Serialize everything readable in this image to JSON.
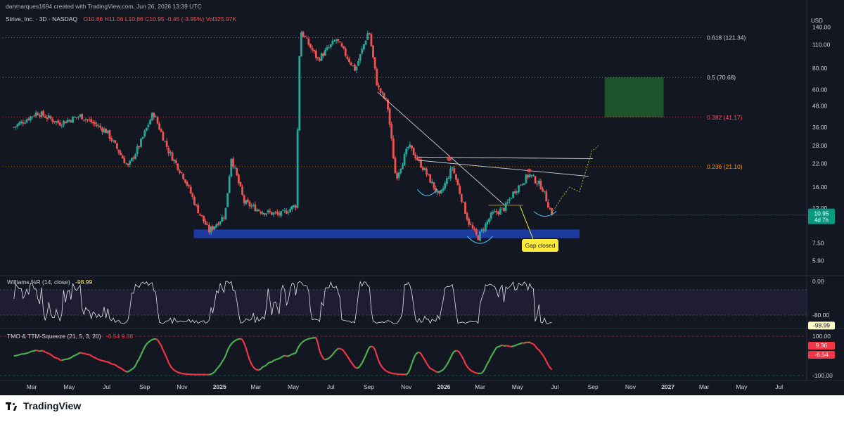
{
  "header": {
    "creator": "danmarques1694 created with TradingView.com, Jun 26, 2026 13:39 UTC",
    "symbol": "Strive, Inc. · 3D · NASDAQ",
    "ohlc": "O10.86 H11.06 L10.86 C10.95 -0.45 (-3.95%) Vol325.97K"
  },
  "currency": "USD",
  "price_badge": {
    "price": "10.95",
    "countdown": "4d 7h"
  },
  "fib_levels": [
    {
      "label": "0.618 (121.34)",
      "value": 121.34,
      "color": "#d1d4dc"
    },
    {
      "label": "0.5 (70.68)",
      "value": 70.68,
      "color": "#d1d4dc"
    },
    {
      "label": "0.382 (41.17)",
      "value": 41.17,
      "color": "#f7525f"
    },
    {
      "label": "0.236 (21.10)",
      "value": 21.1,
      "color": "#ff9800"
    }
  ],
  "annotation": {
    "text": "Gap closed"
  },
  "williams": {
    "title": "Williams %R (14, close)",
    "value": "-98.99",
    "axis": [
      "0.00",
      "-80.00",
      "-98.99"
    ]
  },
  "tmo": {
    "title": "TMO & TTM-Squeeze (21, 5, 3, 20)",
    "value": "-6.54 9.36",
    "axis": [
      "100.00",
      "9.36",
      "-6.54",
      "-100.00"
    ]
  },
  "footer": {
    "brand": "TradingView"
  },
  "colors": {
    "up": "#26a69a",
    "down": "#ef5350",
    "support_zone": "#1c3aa0",
    "target_zone": "#1e5a2b",
    "osc_up": "#4caf50",
    "osc_down": "#f23645",
    "badge": "#089981",
    "callout": "#ffeb3b"
  },
  "chart_data": {
    "type": "candlestick",
    "scale": "log",
    "y_ticks": [
      140,
      110,
      80,
      60,
      48,
      36,
      28,
      22,
      16,
      12,
      7.5,
      5.9
    ],
    "x_ticks": [
      "Mar",
      "May",
      "Jul",
      "Sep",
      "Nov",
      "2025",
      "Mar",
      "May",
      "Jul",
      "Sep",
      "Nov",
      "2026",
      "Mar",
      "May",
      "Jul",
      "Sep",
      "Nov",
      "2027",
      "Mar",
      "May",
      "Jul"
    ],
    "last_close": 10.95,
    "price_path_anchors": [
      {
        "date": "2024-02-01",
        "close": 36
      },
      {
        "date": "2024-03-10",
        "close": 44
      },
      {
        "date": "2024-04-15",
        "close": 38
      },
      {
        "date": "2024-05-20",
        "close": 42
      },
      {
        "date": "2024-07-01",
        "close": 34
      },
      {
        "date": "2024-08-05",
        "close": 21
      },
      {
        "date": "2024-08-25",
        "close": 29
      },
      {
        "date": "2024-09-15",
        "close": 44
      },
      {
        "date": "2024-10-10",
        "close": 26
      },
      {
        "date": "2024-11-05",
        "close": 18
      },
      {
        "date": "2024-11-25",
        "close": 12
      },
      {
        "date": "2024-12-15",
        "close": 8.8
      },
      {
        "date": "2025-01-10",
        "close": 11
      },
      {
        "date": "2025-01-20",
        "close": 24
      },
      {
        "date": "2025-02-10",
        "close": 13
      },
      {
        "date": "2025-03-10",
        "close": 11.5
      },
      {
        "date": "2025-04-10",
        "close": 11
      },
      {
        "date": "2025-05-05",
        "close": 12.5
      },
      {
        "date": "2025-05-12",
        "close": 135
      },
      {
        "date": "2025-06-10",
        "close": 90
      },
      {
        "date": "2025-07-10",
        "close": 118
      },
      {
        "date": "2025-08-10",
        "close": 78
      },
      {
        "date": "2025-09-01",
        "close": 135
      },
      {
        "date": "2025-09-15",
        "close": 62
      },
      {
        "date": "2025-10-01",
        "close": 50
      },
      {
        "date": "2025-10-15",
        "close": 18
      },
      {
        "date": "2025-11-05",
        "close": 28
      },
      {
        "date": "2025-12-01",
        "close": 20
      },
      {
        "date": "2025-12-25",
        "close": 14
      },
      {
        "date": "2026-01-15",
        "close": 21
      },
      {
        "date": "2026-02-10",
        "close": 10
      },
      {
        "date": "2026-02-25",
        "close": 8
      },
      {
        "date": "2026-03-20",
        "close": 11
      },
      {
        "date": "2026-04-10",
        "close": 12
      },
      {
        "date": "2026-04-25",
        "close": 15
      },
      {
        "date": "2026-05-20",
        "close": 19
      },
      {
        "date": "2026-06-10",
        "close": 16
      },
      {
        "date": "2026-06-26",
        "close": 10.95
      }
    ],
    "support_zone": {
      "from": "2024-11-20",
      "to": "2026-08-10",
      "low": 8.0,
      "high": 9.0
    },
    "target_zone": {
      "from": "2026-09-20",
      "to": "2026-12-25",
      "low": 41.17,
      "high": 70.68
    }
  }
}
